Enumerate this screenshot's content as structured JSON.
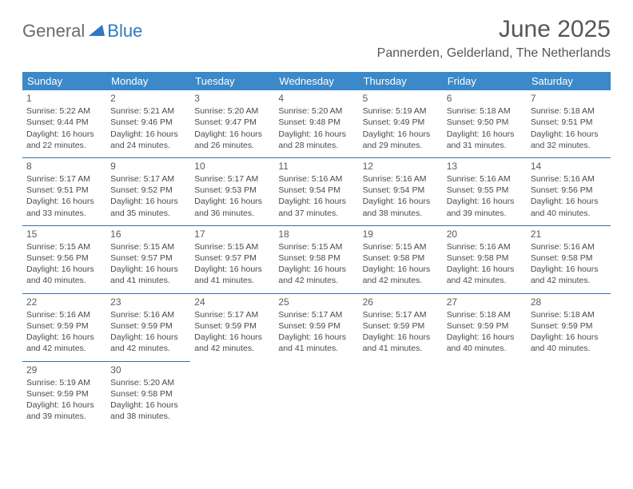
{
  "logo": {
    "text1": "General",
    "text2": "Blue"
  },
  "title": "June 2025",
  "location": "Pannerden, Gelderland, The Netherlands",
  "colors": {
    "header_bg": "#3b89c9",
    "header_text": "#ffffff",
    "rule": "#3b6fa0",
    "body_text": "#4a4a4a",
    "title_text": "#565656",
    "logo_gray": "#6b6b6b",
    "logo_blue": "#2f78c2"
  },
  "day_headers": [
    "Sunday",
    "Monday",
    "Tuesday",
    "Wednesday",
    "Thursday",
    "Friday",
    "Saturday"
  ],
  "weeks": [
    [
      {
        "n": "1",
        "sr": "5:22 AM",
        "ss": "9:44 PM",
        "dl": "16 hours and 22 minutes."
      },
      {
        "n": "2",
        "sr": "5:21 AM",
        "ss": "9:46 PM",
        "dl": "16 hours and 24 minutes."
      },
      {
        "n": "3",
        "sr": "5:20 AM",
        "ss": "9:47 PM",
        "dl": "16 hours and 26 minutes."
      },
      {
        "n": "4",
        "sr": "5:20 AM",
        "ss": "9:48 PM",
        "dl": "16 hours and 28 minutes."
      },
      {
        "n": "5",
        "sr": "5:19 AM",
        "ss": "9:49 PM",
        "dl": "16 hours and 29 minutes."
      },
      {
        "n": "6",
        "sr": "5:18 AM",
        "ss": "9:50 PM",
        "dl": "16 hours and 31 minutes."
      },
      {
        "n": "7",
        "sr": "5:18 AM",
        "ss": "9:51 PM",
        "dl": "16 hours and 32 minutes."
      }
    ],
    [
      {
        "n": "8",
        "sr": "5:17 AM",
        "ss": "9:51 PM",
        "dl": "16 hours and 33 minutes."
      },
      {
        "n": "9",
        "sr": "5:17 AM",
        "ss": "9:52 PM",
        "dl": "16 hours and 35 minutes."
      },
      {
        "n": "10",
        "sr": "5:17 AM",
        "ss": "9:53 PM",
        "dl": "16 hours and 36 minutes."
      },
      {
        "n": "11",
        "sr": "5:16 AM",
        "ss": "9:54 PM",
        "dl": "16 hours and 37 minutes."
      },
      {
        "n": "12",
        "sr": "5:16 AM",
        "ss": "9:54 PM",
        "dl": "16 hours and 38 minutes."
      },
      {
        "n": "13",
        "sr": "5:16 AM",
        "ss": "9:55 PM",
        "dl": "16 hours and 39 minutes."
      },
      {
        "n": "14",
        "sr": "5:16 AM",
        "ss": "9:56 PM",
        "dl": "16 hours and 40 minutes."
      }
    ],
    [
      {
        "n": "15",
        "sr": "5:15 AM",
        "ss": "9:56 PM",
        "dl": "16 hours and 40 minutes."
      },
      {
        "n": "16",
        "sr": "5:15 AM",
        "ss": "9:57 PM",
        "dl": "16 hours and 41 minutes."
      },
      {
        "n": "17",
        "sr": "5:15 AM",
        "ss": "9:57 PM",
        "dl": "16 hours and 41 minutes."
      },
      {
        "n": "18",
        "sr": "5:15 AM",
        "ss": "9:58 PM",
        "dl": "16 hours and 42 minutes."
      },
      {
        "n": "19",
        "sr": "5:15 AM",
        "ss": "9:58 PM",
        "dl": "16 hours and 42 minutes."
      },
      {
        "n": "20",
        "sr": "5:16 AM",
        "ss": "9:58 PM",
        "dl": "16 hours and 42 minutes."
      },
      {
        "n": "21",
        "sr": "5:16 AM",
        "ss": "9:58 PM",
        "dl": "16 hours and 42 minutes."
      }
    ],
    [
      {
        "n": "22",
        "sr": "5:16 AM",
        "ss": "9:59 PM",
        "dl": "16 hours and 42 minutes."
      },
      {
        "n": "23",
        "sr": "5:16 AM",
        "ss": "9:59 PM",
        "dl": "16 hours and 42 minutes."
      },
      {
        "n": "24",
        "sr": "5:17 AM",
        "ss": "9:59 PM",
        "dl": "16 hours and 42 minutes."
      },
      {
        "n": "25",
        "sr": "5:17 AM",
        "ss": "9:59 PM",
        "dl": "16 hours and 41 minutes."
      },
      {
        "n": "26",
        "sr": "5:17 AM",
        "ss": "9:59 PM",
        "dl": "16 hours and 41 minutes."
      },
      {
        "n": "27",
        "sr": "5:18 AM",
        "ss": "9:59 PM",
        "dl": "16 hours and 40 minutes."
      },
      {
        "n": "28",
        "sr": "5:18 AM",
        "ss": "9:59 PM",
        "dl": "16 hours and 40 minutes."
      }
    ],
    [
      {
        "n": "29",
        "sr": "5:19 AM",
        "ss": "9:59 PM",
        "dl": "16 hours and 39 minutes."
      },
      {
        "n": "30",
        "sr": "5:20 AM",
        "ss": "9:58 PM",
        "dl": "16 hours and 38 minutes."
      },
      null,
      null,
      null,
      null,
      null
    ]
  ],
  "labels": {
    "sunrise": "Sunrise: ",
    "sunset": "Sunset: ",
    "daylight": "Daylight: "
  }
}
